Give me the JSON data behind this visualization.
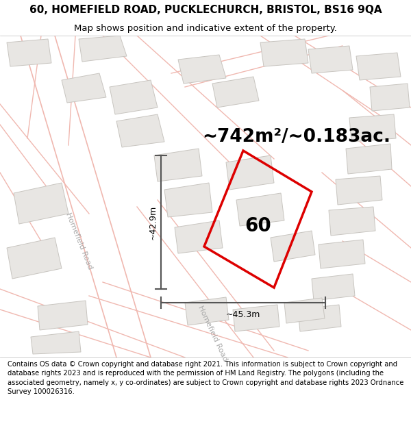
{
  "title": "60, HOMEFIELD ROAD, PUCKLECHURCH, BRISTOL, BS16 9QA",
  "subtitle": "Map shows position and indicative extent of the property.",
  "area_text": "~742m²/~0.183ac.",
  "label": "60",
  "dim_h": "~45.3m",
  "dim_v": "~42.9m",
  "road_label_diag_bottom": "Homefield Road",
  "road_label_left": "Homefield Road",
  "footer": "Contains OS data © Crown copyright and database right 2021. This information is subject to Crown copyright and database rights 2023 and is reproduced with the permission of HM Land Registry. The polygons (including the associated geometry, namely x, y co-ordinates) are subject to Crown copyright and database rights 2023 Ordnance Survey 100026316.",
  "map_bg": "#ffffff",
  "building_fill": "#e8e6e3",
  "building_edge": "#c8c5c0",
  "road_color": "#f0b8b0",
  "property_color": "#dd0000",
  "arrow_color": "#555555",
  "title_fontsize": 11,
  "subtitle_fontsize": 9.5,
  "area_fontsize": 19,
  "label_fontsize": 20,
  "footer_fontsize": 7.2,
  "dim_fontsize": 9,
  "road_label_fontsize": 8
}
